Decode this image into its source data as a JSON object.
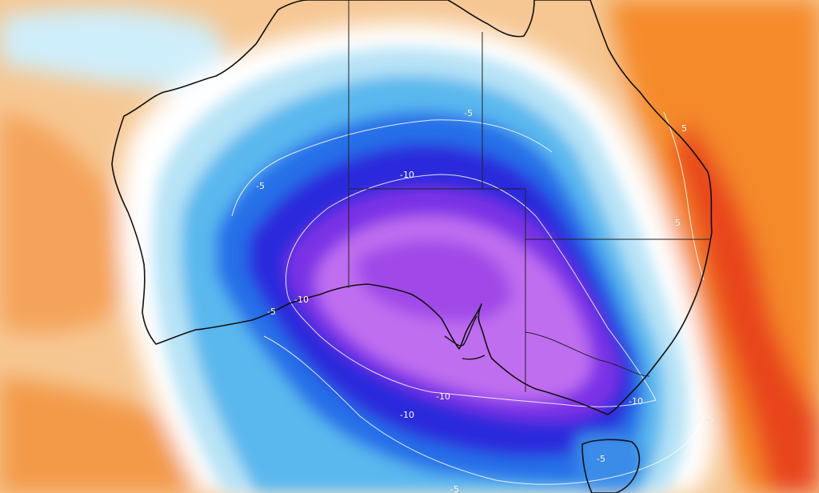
{
  "map": {
    "region": "Australia",
    "colors": {
      "very_warm": "#e83a12",
      "warm": "#f47a1e",
      "mild_warm": "#f7a65a",
      "slight_warm": "#f8d4a8",
      "neutral": "#ffffff",
      "slight_cool": "#bfe6f6",
      "cool": "#5cc0ee",
      "cold": "#1e7be6",
      "colder": "#2d2fe0",
      "very_cold": "#7a2ee6",
      "extreme_cold": "#c26ef0",
      "coastline": "#111111",
      "state_border": "#222222",
      "contour_line": "#ffffff"
    },
    "contour_labels": [
      "-5",
      "-10",
      "-5",
      "-10",
      "-5",
      "-10",
      "5",
      "5",
      "-10",
      "-10",
      "-5",
      "-5",
      "-5"
    ]
  }
}
